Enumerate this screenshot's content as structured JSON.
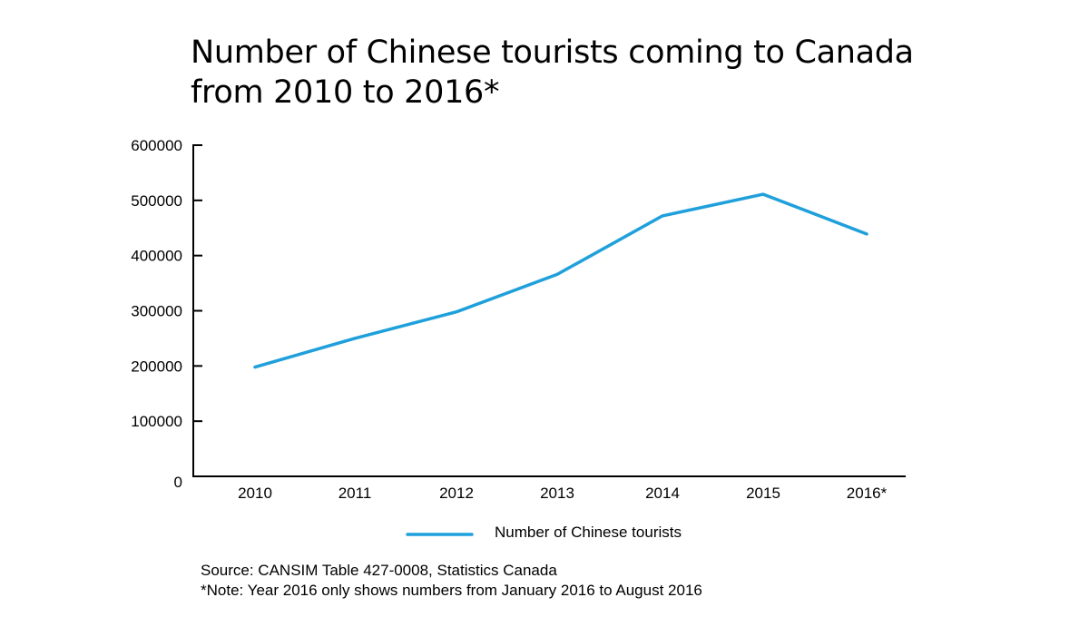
{
  "chart_data": {
    "type": "line",
    "title_lines": [
      "Number of Chinese tourists coming to Canada",
      "from 2010 to 2016*"
    ],
    "categories": [
      "2010",
      "2011",
      "2012",
      "2013",
      "2014",
      "2015",
      "2016*"
    ],
    "series": [
      {
        "name": "Number of Chinese tourists",
        "color": "#1fa0db",
        "values": [
          198000,
          250000,
          298000,
          366000,
          472000,
          511000,
          439000
        ]
      }
    ],
    "yticks": [
      0,
      100000,
      200000,
      300000,
      400000,
      500000,
      600000
    ],
    "ylim": [
      0,
      600000
    ],
    "grid": false,
    "legend_position": "bottom-center"
  },
  "footnotes": [
    "Source: CANSIM Table 427-0008, Statistics Canada",
    "*Note: Year 2016 only shows numbers from January 2016 to August 2016"
  ]
}
